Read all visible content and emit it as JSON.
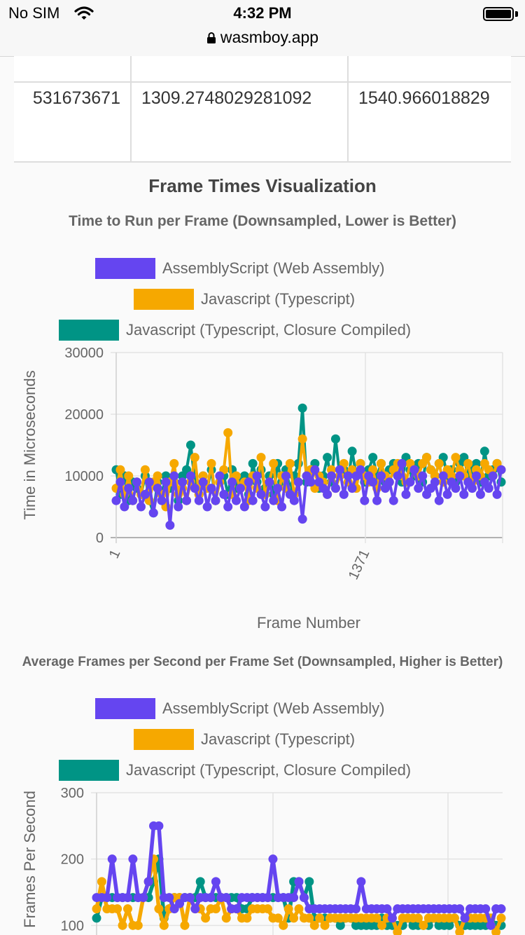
{
  "status_bar": {
    "carrier": "No SIM",
    "time": "4:32 PM",
    "url": "wasmboy.app"
  },
  "table": {
    "cells": [
      "531673671",
      "1309.2748029281092",
      "1540.966018829"
    ]
  },
  "section_title": "Frame Times Visualization",
  "colors": {
    "assemblyscript": "#6545f0",
    "javascript": "#f6a800",
    "closure": "#009485"
  },
  "chart_data": [
    {
      "type": "line",
      "title": "Time to Run per Frame (Downsampled, Lower is Better)",
      "xlabel": "Frame Number",
      "ylabel": "Time in Microseconds",
      "ylim": [
        0,
        30000
      ],
      "yticks": [
        0,
        10000,
        20000,
        30000
      ],
      "ytick_labels": [
        "0",
        "10000",
        "20000",
        "30000"
      ],
      "xtick_labels": [
        "1",
        "1371"
      ],
      "legend_position": "top",
      "grid": true,
      "series": [
        {
          "name": "AssemblyScript (Web Assembly)",
          "color": "#6545f0",
          "values": [
            6000,
            9000,
            5000,
            8000,
            6000,
            9000,
            5000,
            7000,
            9000,
            4000,
            8000,
            6000,
            9000,
            2000,
            10000,
            5000,
            9000,
            6000,
            10000,
            8000,
            6000,
            9000,
            5000,
            8000,
            6000,
            10000,
            7000,
            5000,
            9000,
            6000,
            8000,
            5000,
            9000,
            6000,
            10000,
            7000,
            5000,
            9000,
            6000,
            8000,
            5000,
            10000,
            7000,
            6000,
            9000,
            3000,
            10000,
            9000,
            11000,
            9000,
            8000,
            7000,
            10000,
            8000,
            11000,
            7000,
            10000,
            8000,
            10000,
            11000,
            6000,
            10000,
            9000,
            6000,
            10000,
            8000,
            9000,
            6000,
            10000,
            12000,
            7000,
            9000,
            11000,
            8000,
            10000,
            7000,
            8000,
            9000,
            6000,
            10000,
            7000,
            9000,
            8000,
            10000,
            7000,
            9000,
            8000,
            10000,
            7000,
            9000,
            8000,
            10000,
            7000,
            11000
          ]
        },
        {
          "name": "Javascript (Typescript)",
          "color": "#f6a800",
          "values": [
            8000,
            11000,
            7000,
            10000,
            6000,
            9000,
            7000,
            11000,
            6000,
            9000,
            10000,
            7000,
            5000,
            9000,
            12000,
            7000,
            8000,
            6000,
            9000,
            13000,
            7000,
            10000,
            8000,
            12000,
            6000,
            9000,
            11000,
            17000,
            7000,
            10000,
            8000,
            9000,
            6000,
            10000,
            8000,
            13000,
            7000,
            9000,
            12000,
            6000,
            10000,
            8000,
            12000,
            7000,
            9000,
            16000,
            10000,
            11000,
            8000,
            10000,
            9000,
            7000,
            11000,
            8000,
            10000,
            12000,
            9000,
            11000,
            8000,
            12000,
            10000,
            9000,
            11000,
            8000,
            12000,
            10000,
            9000,
            11000,
            12000,
            10000,
            9000,
            12000,
            11000,
            10000,
            12000,
            13000,
            11000,
            10000,
            12000,
            9000,
            11000,
            10000,
            13000,
            11000,
            10000,
            12000,
            9000,
            11000,
            10000,
            12000,
            11000,
            10000,
            12000,
            11000
          ]
        },
        {
          "name": "Javascript (Typescript, Closure Compiled)",
          "color": "#009485",
          "values": [
            11000,
            7000,
            10000,
            6000,
            9000,
            8000,
            7000,
            10000,
            6000,
            4000,
            9000,
            7000,
            10000,
            8000,
            9000,
            6000,
            10000,
            11000,
            15000,
            9000,
            7000,
            10000,
            8000,
            11000,
            6000,
            9000,
            10000,
            7000,
            11000,
            8000,
            9000,
            10000,
            7000,
            12000,
            9000,
            11000,
            8000,
            10000,
            7000,
            12000,
            9000,
            11000,
            8000,
            10000,
            12000,
            21000,
            9000,
            11000,
            12000,
            8000,
            10000,
            13000,
            9000,
            16000,
            10000,
            11000,
            9000,
            14000,
            10000,
            12000,
            9000,
            11000,
            13000,
            10000,
            12000,
            9000,
            11000,
            12000,
            10000,
            9000,
            13000,
            11000,
            10000,
            12000,
            9000,
            13000,
            11000,
            10000,
            12000,
            13000,
            10000,
            11000,
            9000,
            12000,
            13000,
            10000,
            11000,
            12000,
            9000,
            14000,
            10000,
            11000,
            12000,
            9000
          ]
        }
      ]
    },
    {
      "type": "line",
      "title": "Average Frames per Second per Frame Set (Downsampled, Higher is Better)",
      "ylabel": "Frames Per Second",
      "ylim": [
        0,
        300
      ],
      "yticks": [
        100,
        200,
        300
      ],
      "ytick_labels": [
        "100",
        "200",
        "300"
      ],
      "legend_position": "top",
      "grid": true,
      "series": [
        {
          "name": "AssemblyScript (Web Assembly)",
          "color": "#6545f0",
          "values": [
            142,
            142,
            142,
            200,
            142,
            142,
            142,
            200,
            142,
            142,
            166,
            250,
            250,
            142,
            142,
            125,
            133,
            142,
            142,
            125,
            142,
            142,
            142,
            166,
            142,
            142,
            125,
            125,
            142,
            142,
            142,
            142,
            142,
            142,
            200,
            142,
            142,
            142,
            142,
            166,
            142,
            125,
            125,
            125,
            125,
            125,
            125,
            125,
            125,
            125,
            125,
            166,
            125,
            125,
            125,
            125,
            125,
            111,
            125,
            125,
            125,
            125,
            125,
            125,
            125,
            125,
            125,
            125,
            125,
            125,
            125,
            111,
            125,
            125,
            125,
            125,
            100,
            125,
            125
          ]
        },
        {
          "name": "Javascript (Typescript)",
          "color": "#f6a800",
          "values": [
            125,
            166,
            125,
            125,
            125,
            100,
            125,
            100,
            100,
            142,
            166,
            200,
            125,
            100,
            125,
            142,
            142,
            100,
            142,
            125,
            125,
            111,
            125,
            125,
            142,
            111,
            125,
            125,
            111,
            111,
            125,
            125,
            125,
            125,
            111,
            111,
            100,
            125,
            111,
            125,
            111,
            111,
            100,
            111,
            100,
            111,
            111,
            111,
            111,
            111,
            111,
            111,
            111,
            111,
            111,
            100,
            111,
            111,
            90,
            111,
            111,
            111,
            111,
            100,
            111,
            111,
            111,
            111,
            111,
            111,
            90,
            111,
            111,
            111,
            111,
            111,
            111,
            90,
            111
          ]
        },
        {
          "name": "Javascript (Typescript, Closure Compiled)",
          "color": "#009485",
          "values": [
            111,
            142,
            142,
            142,
            142,
            142,
            142,
            142,
            142,
            142,
            142,
            166,
            200,
            111,
            125,
            142,
            142,
            142,
            142,
            142,
            166,
            142,
            142,
            142,
            142,
            142,
            142,
            142,
            125,
            125,
            142,
            142,
            142,
            142,
            142,
            142,
            142,
            111,
            166,
            166,
            142,
            166,
            111,
            111,
            111,
            111,
            111,
            100,
            111,
            111,
            100,
            100,
            100,
            100,
            100,
            111,
            100,
            100,
            100,
            100,
            111,
            100,
            100,
            100,
            100,
            111,
            100,
            100,
            100,
            111,
            100,
            100,
            100,
            100,
            100,
            100,
            111,
            100,
            100
          ]
        }
      ]
    }
  ]
}
